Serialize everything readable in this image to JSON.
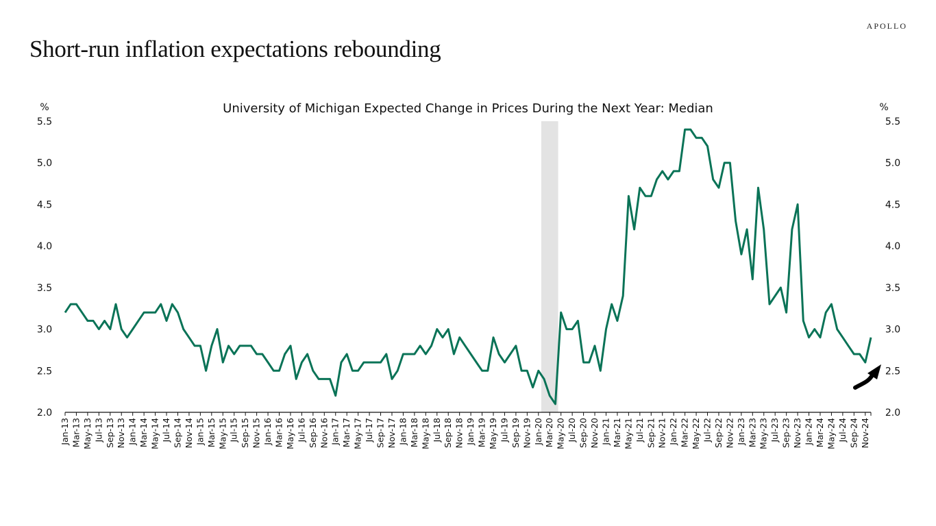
{
  "header": {
    "brand": "APOLLO",
    "title": "Short-run inflation expectations rebounding"
  },
  "chart_data": {
    "type": "line",
    "title": "University of Michigan Expected Change in Prices During the Next Year: Median",
    "xlabel": "",
    "ylabel_left": "%",
    "ylabel_right": "%",
    "ylim": [
      2.0,
      5.5
    ],
    "yticks": [
      "2.0",
      "2.5",
      "3.0",
      "3.5",
      "4.0",
      "4.5",
      "5.0",
      "5.5"
    ],
    "ytick_values": [
      2.0,
      2.5,
      3.0,
      3.5,
      4.0,
      4.5,
      5.0,
      5.5
    ],
    "grid": false,
    "legend": "none",
    "x_tick_labels": [
      "Jan-13",
      "Mar-13",
      "May-13",
      "Jul-13",
      "Sep-13",
      "Nov-13",
      "Jan-14",
      "Mar-14",
      "May-14",
      "Jul-14",
      "Sep-14",
      "Nov-14",
      "Jan-15",
      "Mar-15",
      "May-15",
      "Jul-15",
      "Sep-15",
      "Nov-15",
      "Jan-16",
      "Mar-16",
      "May-16",
      "Jul-16",
      "Sep-16",
      "Nov-16",
      "Jan-17",
      "Mar-17",
      "May-17",
      "Jul-17",
      "Sep-17",
      "Nov-17",
      "Jan-18",
      "Mar-18",
      "May-18",
      "Jul-18",
      "Sep-18",
      "Nov-18",
      "Jan-19",
      "Mar-19",
      "May-19",
      "Jul-19",
      "Sep-19",
      "Nov-19",
      "Jan-20",
      "Mar-20",
      "May-20",
      "Jul-20",
      "Sep-20",
      "Nov-20",
      "Jan-21",
      "Mar-21",
      "May-21",
      "Jul-21",
      "Sep-21",
      "Nov-21",
      "Jan-22",
      "Mar-22",
      "May-22",
      "Jul-22",
      "Sep-22",
      "Nov-22",
      "Jan-23",
      "Mar-23",
      "May-23",
      "Jul-23",
      "Sep-23",
      "Nov-23",
      "Jan-24",
      "Mar-24",
      "May-24",
      "Jul-24",
      "Sep-24",
      "Nov-24"
    ],
    "x_start": "Jan-13",
    "x_frequency": "monthly",
    "recession_shading": {
      "start": "Feb-20",
      "end": "Apr-20",
      "color": "#e3e3e3"
    },
    "annotation": {
      "type": "arrow",
      "direction": "up-right",
      "meaning": "rebound",
      "color": "#000000"
    },
    "series": [
      {
        "name": "Expected Change in Prices During the Next Year: Median",
        "color": "#0a7357",
        "values": [
          3.2,
          3.3,
          3.3,
          3.2,
          3.1,
          3.1,
          3.0,
          3.1,
          3.0,
          3.3,
          3.0,
          2.9,
          3.0,
          3.1,
          3.2,
          3.2,
          3.2,
          3.3,
          3.1,
          3.3,
          3.2,
          3.0,
          2.9,
          2.8,
          2.8,
          2.5,
          2.8,
          3.0,
          2.6,
          2.8,
          2.7,
          2.8,
          2.8,
          2.8,
          2.7,
          2.7,
          2.6,
          2.5,
          2.5,
          2.7,
          2.8,
          2.4,
          2.6,
          2.7,
          2.5,
          2.4,
          2.4,
          2.4,
          2.2,
          2.6,
          2.7,
          2.5,
          2.5,
          2.6,
          2.6,
          2.6,
          2.6,
          2.7,
          2.4,
          2.5,
          2.7,
          2.7,
          2.7,
          2.8,
          2.7,
          2.8,
          3.0,
          2.9,
          3.0,
          2.7,
          2.9,
          2.8,
          2.7,
          2.6,
          2.5,
          2.5,
          2.9,
          2.7,
          2.6,
          2.7,
          2.8,
          2.5,
          2.5,
          2.3,
          2.5,
          2.4,
          2.2,
          2.1,
          3.2,
          3.0,
          3.0,
          3.1,
          2.6,
          2.6,
          2.8,
          2.5,
          3.0,
          3.3,
          3.1,
          3.4,
          4.6,
          4.2,
          4.7,
          4.6,
          4.6,
          4.8,
          4.9,
          4.8,
          4.9,
          4.9,
          5.4,
          5.4,
          5.3,
          5.3,
          5.2,
          4.8,
          4.7,
          5.0,
          5.0,
          4.3,
          3.9,
          4.2,
          3.6,
          4.7,
          4.2,
          3.3,
          3.4,
          3.5,
          3.2,
          4.2,
          4.5,
          3.1,
          2.9,
          3.0,
          2.9,
          3.2,
          3.3,
          3.0,
          2.9,
          2.8,
          2.7,
          2.7,
          2.6,
          2.9
        ]
      }
    ]
  }
}
